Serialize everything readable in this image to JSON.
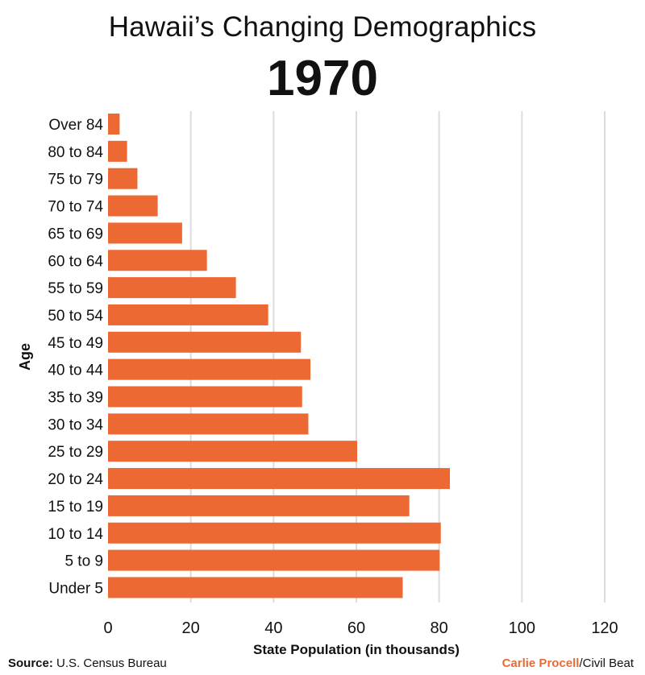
{
  "chart_data": {
    "type": "bar",
    "orientation": "horizontal",
    "title": "Hawaii’s Changing Demographics",
    "subtitle": "1970",
    "xlabel": "State Population (in thousands)",
    "ylabel": "Age",
    "xlim": [
      0,
      120
    ],
    "xticks": [
      0,
      20,
      40,
      60,
      80,
      100,
      120
    ],
    "grid": "vertical",
    "bar_color": "#ec6933",
    "categories": [
      "Over 84",
      "80 to 84",
      "75 to 79",
      "70 to 74",
      "65 to 69",
      "60 to 64",
      "55 to 59",
      "50 to 54",
      "45 to 49",
      "40 to 44",
      "35 to 39",
      "30 to 34",
      "25 to 29",
      "20 to 24",
      "15 to 19",
      "10 to 14",
      "5 to 9",
      "Under 5"
    ],
    "values": [
      2.8,
      4.6,
      7.1,
      12.0,
      17.9,
      23.9,
      30.9,
      38.7,
      46.6,
      48.9,
      46.9,
      48.4,
      60.2,
      82.6,
      72.8,
      80.4,
      80.1,
      71.2
    ]
  },
  "footer": {
    "source_label": "Source:",
    "source_text": "U.S. Census Bureau",
    "credit_name": "Carlie Procell",
    "credit_sep": "/",
    "credit_org": "Civil Beat"
  }
}
